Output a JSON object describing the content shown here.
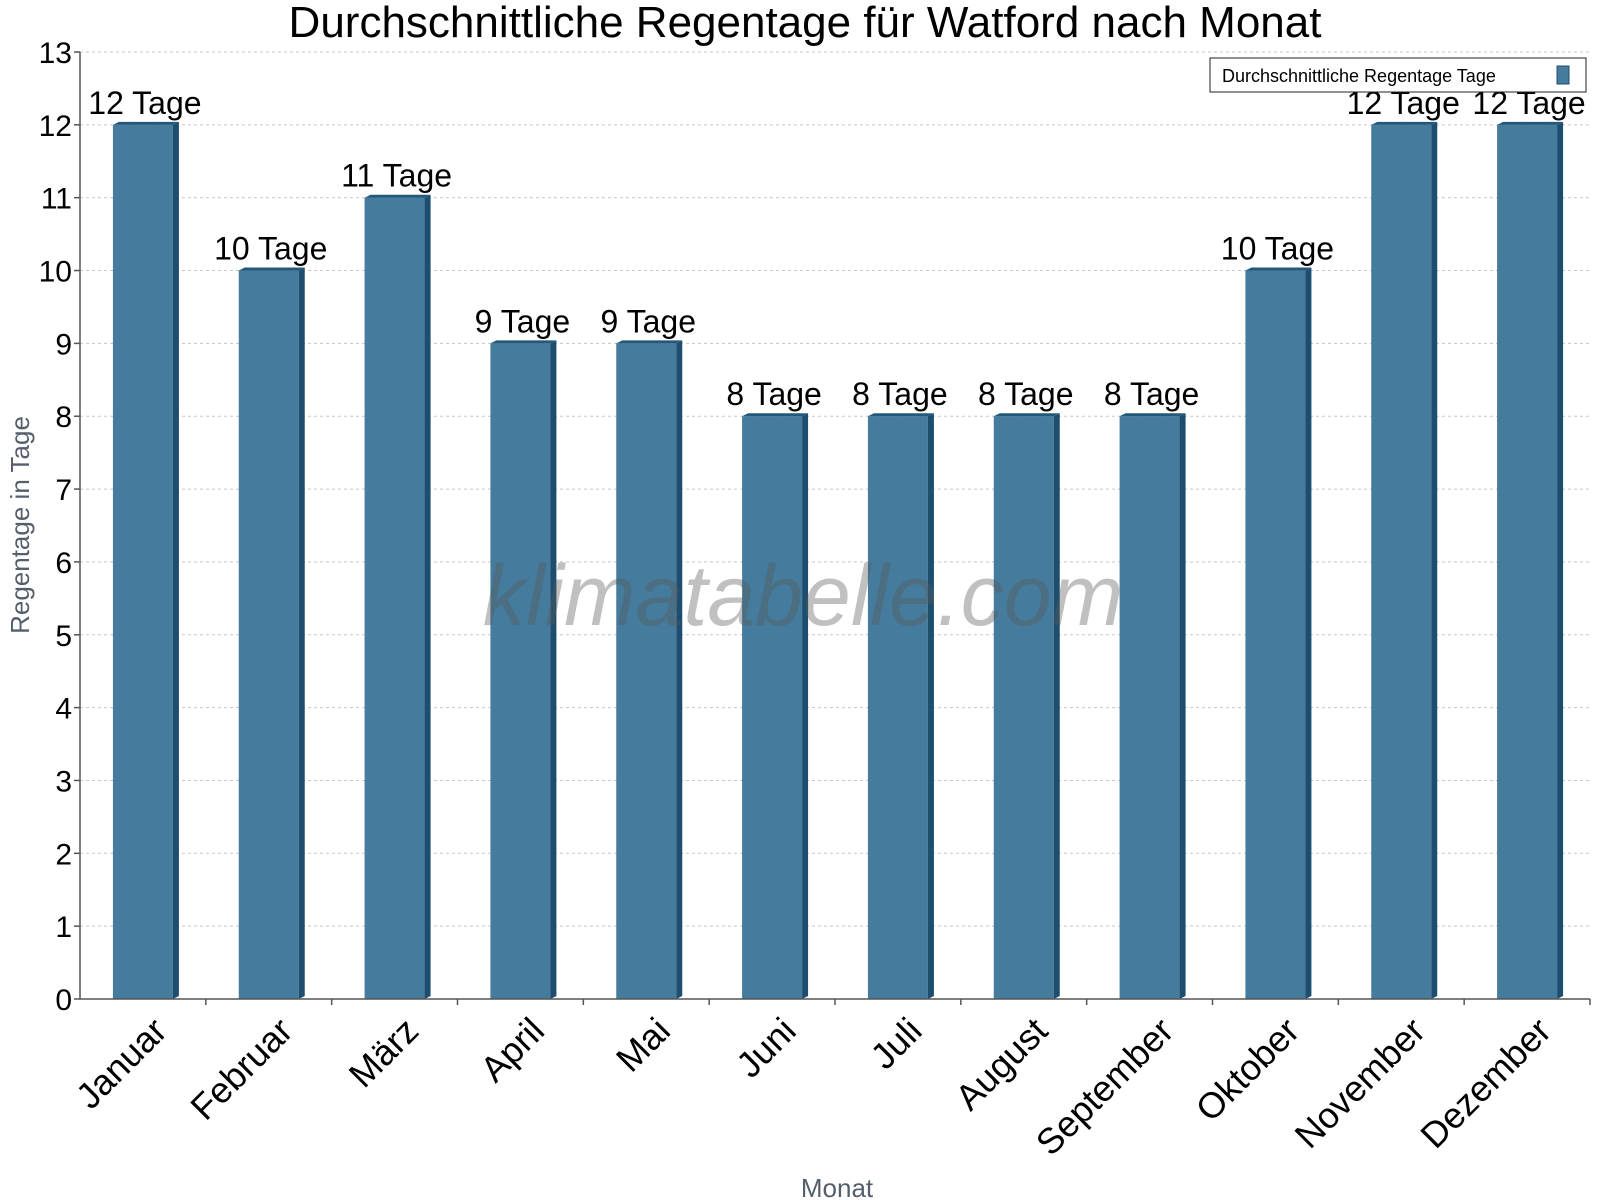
{
  "chart_data": {
    "type": "bar",
    "title": "Durchschnittliche Regentage für Watford nach Monat",
    "xlabel": "Monat",
    "ylabel": "Regentage in Tage",
    "categories": [
      "Januar",
      "Februar",
      "März",
      "April",
      "Mai",
      "Juni",
      "Juli",
      "August",
      "September",
      "Oktober",
      "November",
      "Dezember"
    ],
    "series": [
      {
        "name": "Durchschnittliche Regentage Tage",
        "values": [
          12,
          10,
          11,
          9,
          9,
          8,
          8,
          8,
          8,
          10,
          12,
          12
        ],
        "labels": [
          "12 Tage",
          "10 Tage",
          "11 Tage",
          "9 Tage",
          "9 Tage",
          "8 Tage",
          "8 Tage",
          "8 Tage",
          "8 Tage",
          "10 Tage",
          "12 Tage",
          "12 Tage"
        ]
      }
    ],
    "ylim": [
      0,
      13
    ],
    "yticks": [
      0,
      1,
      2,
      3,
      4,
      5,
      6,
      7,
      8,
      9,
      10,
      11,
      12,
      13
    ],
    "grid": true,
    "legend_position": "top-right",
    "watermark": "klimatabelle.com",
    "colors": {
      "bar_front": "#457b9d",
      "bar_side": "#1d4e6f",
      "bar_top": "#24587a",
      "grid": "#c8c8c8",
      "axis": "#555555",
      "axis_title": "#555f6b"
    }
  }
}
